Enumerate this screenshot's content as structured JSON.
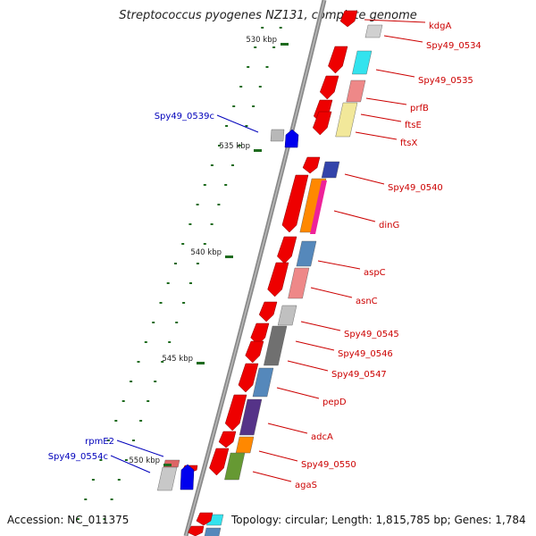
{
  "title": "Streptococcus pyogenes NZ131, complete genome",
  "accession": "Accession: NC_011375",
  "topology": "Topology: circular; Length: 1,815,785 bp; Genes: 1,784",
  "kbp_ticks": [
    "530 kbp",
    "535 kbp",
    "540 kbp",
    "545 kbp",
    "550 kbp"
  ],
  "genes_right": [
    "kdgA",
    "Spy49_0534",
    "Spy49_0535",
    "prfB",
    "ftsE",
    "ftsX",
    "Spy49_0540",
    "dinG",
    "aspC",
    "asnC",
    "Spy49_0545",
    "Spy49_0546",
    "Spy49_0547",
    "pepD",
    "adcA",
    "Spy49_0550",
    "agaS"
  ],
  "genes_left": [
    "Spy49_0539c",
    "rpmE2",
    "Spy49_0554c"
  ],
  "colors": {
    "forward_arrow": "#ee0000",
    "reverse_arrow": "#0000ee",
    "label_forward": "#cc0000",
    "label_reverse": "#0000bb",
    "tick": "#1e6b1e",
    "backbone": "#7a7a7a"
  }
}
